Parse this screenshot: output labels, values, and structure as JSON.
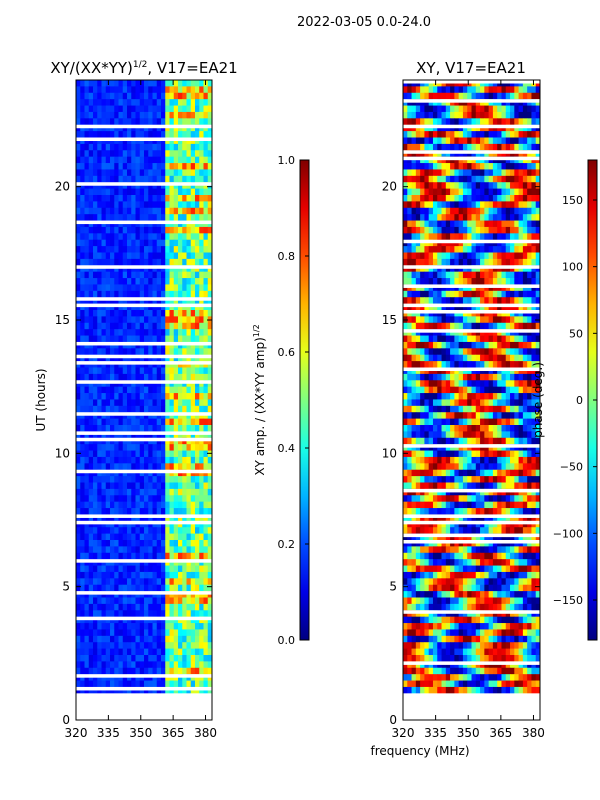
{
  "figure": {
    "suptitle": "2022-03-05 0.0-24.0",
    "common_xlabel": "frequency (MHz)"
  },
  "chart_data": [
    {
      "type": "heatmap",
      "title_main": "XY/(XX*YY)",
      "title_exp": "1/2",
      "title_suffix": ", V17=EA21",
      "ylabel": "UT (hours)",
      "xlim": [
        320,
        383
      ],
      "ylim": [
        0,
        24
      ],
      "xticks": [
        320,
        335,
        350,
        365,
        380
      ],
      "yticks": [
        0,
        5,
        10,
        15,
        20
      ],
      "data_start_hour": 1.0,
      "colormap": "jet",
      "colorbar": {
        "label_main": "XY amp. / (XX*YY amp)",
        "label_exp": "1/2",
        "range": [
          0.0,
          1.0
        ],
        "ticks": [
          "0.0",
          "0.2",
          "0.4",
          "0.6",
          "0.8",
          "1.0"
        ],
        "tick_values": [
          0.0,
          0.2,
          0.4,
          0.6,
          0.8,
          1.0
        ]
      }
    },
    {
      "type": "heatmap",
      "title": "XY, V17=EA21",
      "xlim": [
        320,
        383
      ],
      "ylim": [
        0,
        24
      ],
      "xticks": [
        320,
        335,
        350,
        365,
        380
      ],
      "yticks": [
        0,
        5,
        10,
        15,
        20
      ],
      "data_start_hour": 1.0,
      "colormap": "jet",
      "colorbar": {
        "label": "phase (deg.)",
        "range": [
          -180,
          180
        ],
        "ticks": [
          "150",
          "100",
          "50",
          "0",
          "−50",
          "−100",
          "−150"
        ],
        "tick_values": [
          150,
          100,
          50,
          0,
          -50,
          -100,
          -150
        ]
      }
    }
  ]
}
